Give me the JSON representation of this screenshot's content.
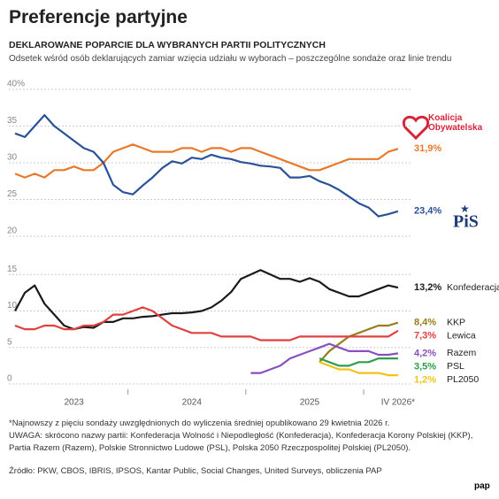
{
  "header": {
    "title": "Preferencje partyjne",
    "subtitle": "DEKLAROWANE POPARCIE DLA WYBRANYCH PARTII POLITYCZNYCH",
    "description": "Odsetek wśród osób deklarujących zamiar wzięcia udziału w wyborach – poszczególne sondaże oraz linie trendu"
  },
  "chart_data": {
    "type": "line",
    "grid": true,
    "categories": [
      null,
      null,
      null,
      null,
      null,
      null,
      "2023",
      null,
      null,
      null,
      null,
      null,
      null,
      null,
      null,
      null,
      null,
      null,
      "2024",
      null,
      null,
      null,
      null,
      null,
      null,
      null,
      null,
      null,
      null,
      null,
      "2025",
      null,
      null,
      null,
      null,
      null,
      null,
      null,
      null,
      "IV 2026*"
    ],
    "panels": [
      {
        "ylim": [
          20,
          40
        ],
        "yticks": [
          20,
          25,
          30,
          35,
          {
            "value": 40,
            "label": "40%"
          }
        ],
        "series": [
          {
            "name": "Koalicja Obywatelska",
            "color": "#e8792b",
            "values": [
              28.5,
              28,
              28.5,
              28,
              29,
              29,
              29.5,
              29,
              29,
              30,
              31.5,
              32,
              32.5,
              32,
              31.5,
              31.5,
              31.5,
              32,
              32,
              31.5,
              32,
              32,
              31.5,
              32,
              32,
              31.5,
              31,
              30.5,
              30,
              29.5,
              29,
              29,
              29.5,
              30,
              30.5,
              30.5,
              30.5,
              30.5,
              31.5,
              31.9
            ],
            "value_labels": [
              null,
              null,
              null,
              null,
              null,
              null,
              null,
              null,
              null,
              null,
              null,
              null,
              null,
              null,
              null,
              null,
              null,
              null,
              null,
              null,
              null,
              null,
              null,
              null,
              null,
              null,
              null,
              null,
              null,
              null,
              null,
              null,
              null,
              null,
              null,
              null,
              null,
              null,
              null,
              "31,9%"
            ]
          },
          {
            "name": "PiS",
            "color": "#2a5298",
            "values": [
              34,
              33.5,
              35,
              36.5,
              35,
              34,
              33,
              32,
              31.5,
              30,
              27,
              26,
              25.7,
              26.9,
              28,
              29.3,
              30.2,
              29.9,
              30.7,
              30.5,
              31.1,
              30.7,
              30.5,
              30.1,
              29.9,
              29.6,
              29.5,
              29.3,
              28,
              28,
              28.2,
              27.5,
              27,
              26.3,
              25.4,
              24.5,
              23.9,
              22.7,
              23,
              23.4
            ],
            "value_labels": [
              null,
              null,
              null,
              null,
              null,
              null,
              null,
              null,
              null,
              null,
              null,
              null,
              null,
              null,
              null,
              null,
              null,
              null,
              null,
              null,
              null,
              null,
              null,
              null,
              null,
              null,
              null,
              null,
              null,
              null,
              null,
              null,
              null,
              null,
              null,
              null,
              null,
              null,
              null,
              "23,4%"
            ]
          }
        ]
      },
      {
        "ylim": [
          0,
          16
        ],
        "yticks": [
          0,
          5,
          10,
          15
        ],
        "series": [
          {
            "name": "Konfederacja",
            "color": "#1a1a1a",
            "values": [
              10,
              12.5,
              13.5,
              11,
              9.5,
              8,
              7.5,
              7.8,
              7.7,
              8.5,
              8.5,
              9,
              9,
              9.2,
              9.3,
              9.5,
              9.7,
              9.7,
              9.8,
              10,
              10.5,
              11.4,
              12.6,
              14.4,
              15,
              15.6,
              15,
              14.4,
              14.4,
              14,
              14.5,
              14,
              13,
              12.5,
              12,
              12,
              12.5,
              13,
              13.5,
              13.2
            ],
            "value_labels": [
              null,
              null,
              null,
              null,
              null,
              null,
              null,
              null,
              null,
              null,
              null,
              null,
              null,
              null,
              null,
              null,
              null,
              null,
              null,
              null,
              null,
              null,
              null,
              null,
              null,
              null,
              null,
              null,
              null,
              null,
              null,
              null,
              null,
              null,
              null,
              null,
              null,
              null,
              null,
              "13,2%"
            ]
          },
          {
            "name": "KKP",
            "color": "#9a7d1a",
            "values": [
              null,
              null,
              null,
              null,
              null,
              null,
              null,
              null,
              null,
              null,
              null,
              null,
              null,
              null,
              null,
              null,
              null,
              null,
              null,
              null,
              null,
              null,
              null,
              null,
              null,
              null,
              null,
              null,
              null,
              null,
              null,
              3,
              4.5,
              5.5,
              6.5,
              7,
              7.5,
              8,
              8,
              8.4
            ],
            "value_labels": [
              null,
              null,
              null,
              null,
              null,
              null,
              null,
              null,
              null,
              null,
              null,
              null,
              null,
              null,
              null,
              null,
              null,
              null,
              null,
              null,
              null,
              null,
              null,
              null,
              null,
              null,
              null,
              null,
              null,
              null,
              null,
              null,
              null,
              null,
              null,
              null,
              null,
              null,
              null,
              "8,4%"
            ]
          },
          {
            "name": "Lewica",
            "color": "#e04040",
            "values": [
              8,
              7.5,
              7.5,
              8,
              8,
              7.5,
              7.5,
              8,
              8,
              8.5,
              9.5,
              9.5,
              10,
              10.5,
              10,
              9,
              8,
              7.5,
              7,
              7,
              7,
              6.5,
              6.5,
              6.5,
              6.5,
              6,
              6,
              6,
              6,
              6.5,
              6.5,
              6.5,
              6.5,
              6.5,
              6.5,
              6.5,
              6.5,
              6.5,
              6.5,
              7.3
            ],
            "value_labels": [
              null,
              null,
              null,
              null,
              null,
              null,
              null,
              null,
              null,
              null,
              null,
              null,
              null,
              null,
              null,
              null,
              null,
              null,
              null,
              null,
              null,
              null,
              null,
              null,
              null,
              null,
              null,
              null,
              null,
              null,
              null,
              null,
              null,
              null,
              null,
              null,
              null,
              null,
              null,
              "7,3%"
            ]
          },
          {
            "name": "Razem",
            "color": "#8a4fbf",
            "values": [
              null,
              null,
              null,
              null,
              null,
              null,
              null,
              null,
              null,
              null,
              null,
              null,
              null,
              null,
              null,
              null,
              null,
              null,
              null,
              null,
              null,
              null,
              null,
              null,
              1.5,
              1.5,
              2,
              2.5,
              3.5,
              4,
              4.5,
              5,
              5.5,
              5,
              4.5,
              4.5,
              4.5,
              4,
              4,
              4.2
            ],
            "value_labels": [
              null,
              null,
              null,
              null,
              null,
              null,
              null,
              null,
              null,
              null,
              null,
              null,
              null,
              null,
              null,
              null,
              null,
              null,
              null,
              null,
              null,
              null,
              null,
              null,
              null,
              null,
              null,
              null,
              null,
              null,
              null,
              null,
              null,
              null,
              null,
              null,
              null,
              null,
              null,
              "4,2%"
            ]
          },
          {
            "name": "PSL",
            "color": "#2e9e48",
            "values": [
              null,
              null,
              null,
              null,
              null,
              null,
              null,
              null,
              null,
              null,
              null,
              null,
              null,
              null,
              null,
              null,
              null,
              null,
              null,
              null,
              null,
              null,
              null,
              null,
              null,
              null,
              null,
              null,
              null,
              null,
              null,
              3.5,
              3,
              2.5,
              2.5,
              3,
              3,
              3.5,
              3.5,
              3.5
            ],
            "value_labels": [
              null,
              null,
              null,
              null,
              null,
              null,
              null,
              null,
              null,
              null,
              null,
              null,
              null,
              null,
              null,
              null,
              null,
              null,
              null,
              null,
              null,
              null,
              null,
              null,
              null,
              null,
              null,
              null,
              null,
              null,
              null,
              null,
              null,
              null,
              null,
              null,
              null,
              null,
              null,
              "3,5%"
            ]
          },
          {
            "name": "PL2050",
            "color": "#f2c21b",
            "values": [
              null,
              null,
              null,
              null,
              null,
              null,
              null,
              null,
              null,
              null,
              null,
              null,
              null,
              null,
              null,
              null,
              null,
              null,
              null,
              null,
              null,
              null,
              null,
              null,
              null,
              null,
              null,
              null,
              null,
              null,
              null,
              3,
              2.5,
              2,
              2,
              1.5,
              1.5,
              1.5,
              1.2,
              1.2
            ],
            "value_labels": [
              null,
              null,
              null,
              null,
              null,
              null,
              null,
              null,
              null,
              null,
              null,
              null,
              null,
              null,
              null,
              null,
              null,
              null,
              null,
              null,
              null,
              null,
              null,
              null,
              null,
              null,
              null,
              null,
              null,
              null,
              null,
              null,
              null,
              null,
              null,
              null,
              null,
              null,
              null,
              "1,2%"
            ]
          }
        ]
      }
    ]
  },
  "notes": [
    "*Najnowszy z pięciu sondaży uwzględnionych do wyliczenia średniej opublikowano 29 kwietnia 2026 r.",
    "UWAGA: skrócono nazwy partii: Konfederacja Wolność i Niepodległość (Konfederacja), Konfederacja Korony Polskiej (KKP),",
    "Partia Razem (Razem), Polskie Stronnictwo Ludowe (PSL), Polska 2050 Rzeczpospolitej Polskiej (PL2050)."
  ],
  "source": "Źródło: PKW, CBOS, IBRIS, IPSOS, Kantar Public, Social Changes, United Surveys, obliczenia PAP",
  "logo": "pap"
}
